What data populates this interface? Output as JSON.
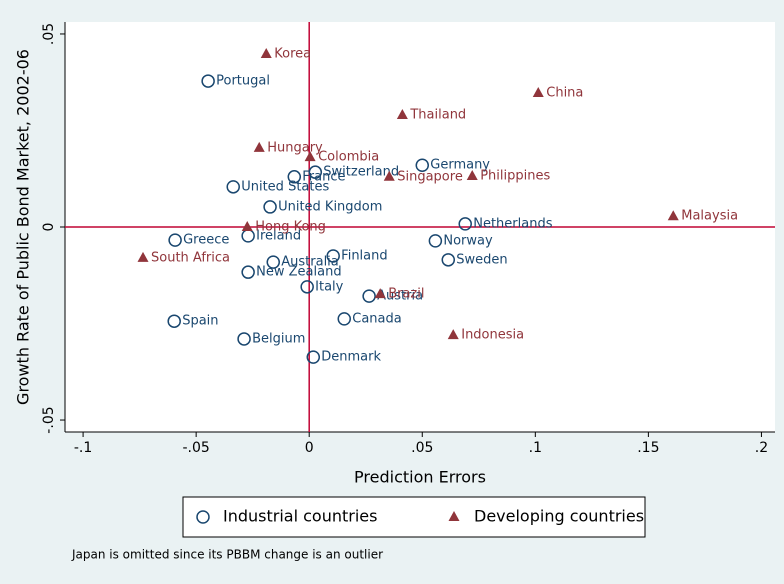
{
  "chart_data": {
    "type": "scatter",
    "xlabel": "Prediction Errors",
    "ylabel": "Growth Rate of Public Bond Market, 2002-06",
    "note": "Japan is omitted since its PBBM change is an outlier",
    "xlim": [
      -0.108,
      0.206
    ],
    "ylim": [
      -0.0531,
      0.0531
    ],
    "xticks": [
      {
        "value": -0.1,
        "label": "-.1"
      },
      {
        "value": -0.05,
        "label": "-.05"
      },
      0,
      {
        "value": 0.05,
        "label": ".05"
      },
      {
        "value": 0.1,
        "label": ".1"
      },
      {
        "value": 0.15,
        "label": ".15"
      },
      {
        "value": 0.2,
        "label": ".2"
      }
    ],
    "yticks": [
      {
        "value": -0.05,
        "label": "-.05"
      },
      0,
      {
        "value": 0.05,
        "label": ".05"
      }
    ],
    "reference_lines": {
      "x": 0,
      "y": 0,
      "color": "#c10534"
    },
    "legend": "bottom",
    "series": [
      {
        "name": "Industrial countries",
        "marker": "circle",
        "color": "#1a476f",
        "labels": [
          "Portugal",
          "United States",
          "Germany",
          "Switzerland",
          "France",
          "United Kingdom",
          "Netherlands",
          "Norway",
          "Sweden",
          "Greece",
          "Ireland",
          "Finland",
          "Australia",
          "New Zealand",
          "Italy",
          "Austria",
          "Canada",
          "Spain",
          "Belgium",
          "Denmark"
        ],
        "x": [
          -0.0447,
          -0.0336,
          0.05,
          0.0027,
          -0.0066,
          -0.0173,
          0.069,
          0.0558,
          0.0615,
          -0.0593,
          -0.027,
          0.0106,
          -0.0159,
          -0.027,
          -0.0009,
          0.0265,
          0.0155,
          -0.0597,
          -0.0288,
          0.0018
        ],
        "y": [
          0.0378,
          0.0104,
          0.016,
          0.0142,
          0.013,
          0.0052,
          0.0008,
          -0.0036,
          -0.0085,
          -0.0034,
          -0.0023,
          -0.0075,
          -0.0091,
          -0.0117,
          -0.0155,
          -0.0179,
          -0.0238,
          -0.0244,
          -0.029,
          -0.0337
        ]
      },
      {
        "name": "Developing countries",
        "marker": "triangle",
        "color": "#90353b",
        "labels": [
          "Korea",
          "China",
          "Thailand",
          "Hungary",
          "Colombia",
          "Singapore",
          "Philippines",
          "Malaysia",
          "Hong Kong",
          "South Africa",
          "Brazil",
          "Indonesia"
        ],
        "x": [
          -0.019,
          0.1013,
          0.0412,
          -0.0221,
          0.0004,
          0.0354,
          0.0721,
          0.161,
          -0.0274,
          -0.0735,
          0.0314,
          0.0637
        ],
        "y": [
          0.0448,
          0.0347,
          0.029,
          0.0205,
          0.0181,
          0.013,
          0.0132,
          0.0028,
          0.0,
          -0.008,
          -0.0174,
          -0.028
        ]
      }
    ]
  }
}
